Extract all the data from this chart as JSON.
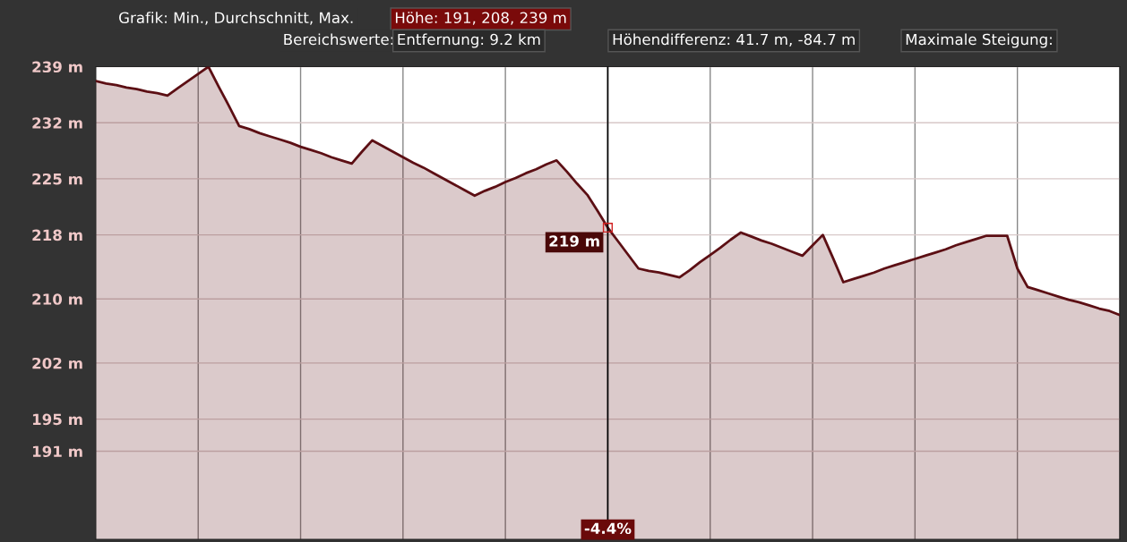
{
  "chart_data": {
    "type": "area",
    "categories": [
      null,
      null,
      null,
      null,
      null,
      null,
      null,
      null,
      null,
      null,
      null,
      null,
      null,
      null,
      null,
      null,
      null,
      null,
      null,
      null,
      null,
      null,
      null,
      null,
      null,
      null,
      null,
      null,
      null,
      null,
      null,
      null,
      null,
      null,
      null,
      null,
      null,
      null,
      null,
      null,
      null,
      null,
      null,
      null,
      null,
      null,
      null,
      null,
      null,
      null,
      null,
      null,
      null,
      null,
      null,
      null,
      null,
      null,
      null,
      null,
      null,
      null,
      null,
      null,
      null,
      null,
      null,
      null,
      null,
      null,
      null,
      null,
      null,
      null,
      null,
      null,
      null,
      null,
      null,
      null,
      null,
      null,
      null,
      null,
      null,
      null,
      null,
      null,
      null,
      null,
      null,
      null,
      null,
      null,
      null,
      null,
      null,
      null,
      null,
      null,
      null
    ],
    "series": [
      {
        "color": "#5c0f14",
        "values": [
          237.2,
          236.9,
          236.7,
          236.4,
          236.2,
          235.9,
          235.7,
          235.4,
          236.3,
          237.2,
          238.1,
          239.0,
          236.5,
          234.1,
          231.6,
          231.2,
          230.7,
          230.3,
          229.9,
          229.5,
          229.0,
          228.6,
          228.2,
          227.7,
          227.3,
          226.9,
          228.4,
          229.8,
          229.1,
          228.4,
          227.7,
          227.0,
          226.4,
          225.7,
          225.0,
          224.3,
          223.6,
          222.9,
          223.5,
          224.0,
          224.6,
          225.1,
          225.7,
          226.2,
          226.8,
          227.3,
          225.9,
          224.4,
          223.0,
          221.0,
          218.9,
          217.2,
          215.5,
          213.8,
          213.5,
          213.3,
          213.0,
          212.7,
          213.6,
          214.6,
          215.5,
          216.4,
          217.4,
          218.3,
          217.8,
          217.3,
          216.9,
          216.4,
          215.9,
          215.4,
          216.7,
          218.0,
          215.1,
          212.1,
          212.5,
          212.9,
          213.3,
          213.8,
          214.2,
          214.6,
          215.0,
          215.4,
          215.8,
          216.2,
          216.7,
          217.1,
          217.5,
          217.9,
          217.9,
          217.9,
          213.8,
          211.5,
          211.1,
          210.7,
          210.3,
          209.9,
          209.6,
          209.2,
          208.8,
          208.5,
          208.0
        ]
      }
    ],
    "ylim": [
      180,
      239
    ],
    "yticks": [
      {
        "value": 239,
        "label": "239 m"
      },
      {
        "value": 232,
        "label": "232 m"
      },
      {
        "value": 225,
        "label": "225 m"
      },
      {
        "value": 218,
        "label": "218 m"
      },
      {
        "value": 210,
        "label": "210 m"
      },
      {
        "value": 202,
        "label": "202 m"
      },
      {
        "value": 195,
        "label": "195 m"
      },
      {
        "value": 191,
        "label": "191 m"
      }
    ],
    "grid": true,
    "tick_labels": "y",
    "annotations": [
      "219 m",
      "-4.4%",
      "Grafik: Min., Durchschnitt, Max.",
      "Höhe: 191, 208, 239 m",
      "Bereichswerte:",
      "Entfernung: 9.2 km",
      "Höhendifferenz: 41.7 m, -84.7 m",
      "Maximale Steigung:"
    ]
  }
}
